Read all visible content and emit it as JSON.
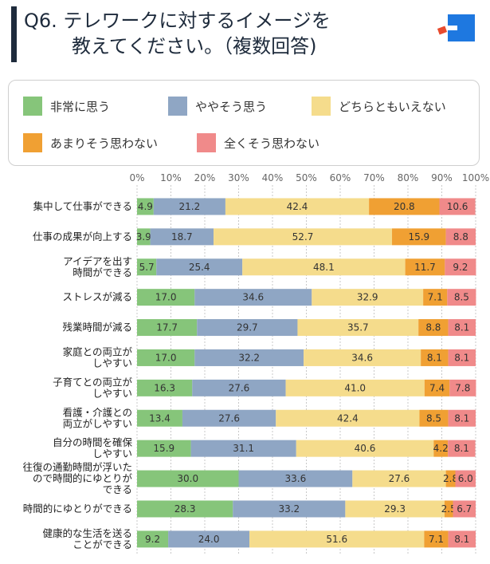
{
  "header": {
    "title_line1": "Q6. テレワークに対するイメージを",
    "title_line2": "教えてください。（複数回答)"
  },
  "legend": [
    {
      "label": "非常に思う",
      "color": "#86c57a"
    },
    {
      "label": "ややそう思う",
      "color": "#8fa6c4"
    },
    {
      "label": "どちらともいえない",
      "color": "#f5dc8c"
    },
    {
      "label": "あまりそう思わない",
      "color": "#f0a033"
    },
    {
      "label": "全くそう思わない",
      "color": "#f08a8a"
    }
  ],
  "colors": {
    "logo_blue": "#1e78e0",
    "logo_red": "#e84b2e",
    "title_bar": "#1e2b3c",
    "grid": "#c8c8c8"
  },
  "chart_data": {
    "type": "bar",
    "orientation": "horizontal",
    "stacked": true,
    "xlim": [
      0,
      100
    ],
    "x_ticks": [
      "0%",
      "10%",
      "20%",
      "30%",
      "40%",
      "50%",
      "60%",
      "70%",
      "80%",
      "90%",
      "100%"
    ],
    "grid": true,
    "legend_position": "top",
    "categories": [
      [
        "集中して仕事ができる"
      ],
      [
        "仕事の成果が向上する"
      ],
      [
        "アイデアを出す",
        "時間ができる"
      ],
      [
        "ストレスが減る"
      ],
      [
        "残業時間が減る"
      ],
      [
        "家庭との両立が",
        "しやすい"
      ],
      [
        "子育てとの両立が",
        "しやすい"
      ],
      [
        "看護・介護との",
        "両立がしやすい"
      ],
      [
        "自分の時間を確保",
        "しやすい"
      ],
      [
        "往復の通勤時間が浮いた",
        "ので時間的にゆとりが",
        "できる"
      ],
      [
        "時間的にゆとりができる"
      ],
      [
        "健康的な生活を送る",
        "ことができる"
      ]
    ],
    "series": [
      {
        "name": "非常に思う",
        "values": [
          4.9,
          3.9,
          5.7,
          17.0,
          17.7,
          17.0,
          16.3,
          13.4,
          15.9,
          30.0,
          28.3,
          9.2
        ]
      },
      {
        "name": "ややそう思う",
        "values": [
          21.2,
          18.7,
          25.4,
          34.6,
          29.7,
          32.2,
          27.6,
          27.6,
          31.1,
          33.6,
          33.2,
          24.0
        ]
      },
      {
        "name": "どちらともいえない",
        "values": [
          42.4,
          52.7,
          48.1,
          32.9,
          35.7,
          34.6,
          41.0,
          42.4,
          40.6,
          27.6,
          29.3,
          51.6
        ]
      },
      {
        "name": "あまりそう思わない",
        "values": [
          20.8,
          15.9,
          11.7,
          7.1,
          8.8,
          8.1,
          7.4,
          8.5,
          4.2,
          2.8,
          2.5,
          7.1
        ]
      },
      {
        "name": "全くそう思わない",
        "values": [
          10.6,
          8.8,
          9.2,
          8.5,
          8.1,
          8.1,
          7.8,
          8.1,
          8.1,
          6.0,
          6.7,
          8.1
        ]
      }
    ],
    "value_labels": [
      [
        "4.9",
        "21.2",
        "42.4",
        "20.8",
        "10.6"
      ],
      [
        "3.9",
        "18.7",
        "52.7",
        "15.9",
        "8.8"
      ],
      [
        "5.7",
        "25.4",
        "48.1",
        "11.7",
        "9.2"
      ],
      [
        "17.0",
        "34.6",
        "32.9",
        "7.1",
        "8.5"
      ],
      [
        "17.7",
        "29.7",
        "35.7",
        "8.8",
        "8.1"
      ],
      [
        "17.0",
        "32.2",
        "34.6",
        "8.1",
        "8.1"
      ],
      [
        "16.3",
        "27.6",
        "41.0",
        "7.4",
        "7.8"
      ],
      [
        "13.4",
        "27.6",
        "42.4",
        "8.5",
        "8.1"
      ],
      [
        "15.9",
        "31.1",
        "40.6",
        "4.2",
        "8.1"
      ],
      [
        "30.0",
        "33.6",
        "27.6",
        "2.8",
        "6.0"
      ],
      [
        "28.3",
        "33.2",
        "29.3",
        "2.5",
        "6.7"
      ],
      [
        "9.2",
        "24.0",
        "51.6",
        "7.1",
        "8.1"
      ]
    ]
  }
}
